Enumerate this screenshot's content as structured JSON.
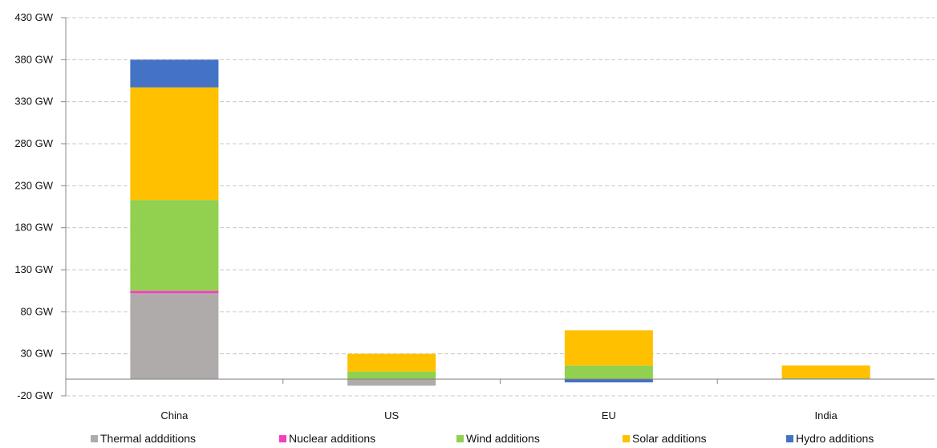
{
  "chart_data": {
    "type": "bar",
    "stacked": true,
    "categories": [
      "China",
      "US",
      "EU",
      "India"
    ],
    "y_unit_suffix": " GW",
    "ylim": [
      -20,
      430
    ],
    "y_ticks": [
      -20,
      30,
      80,
      130,
      180,
      230,
      280,
      330,
      380,
      430
    ],
    "grid": true,
    "legend_position": "bottom",
    "series": [
      {
        "name": "Thermal addditions",
        "color": "#b0abab",
        "values": [
          102,
          -8,
          0,
          0
        ]
      },
      {
        "name": "Nuclear additions",
        "color": "#f23fc0",
        "values": [
          3,
          0,
          0,
          0
        ]
      },
      {
        "name": "Wind additions",
        "color": "#92d050",
        "values": [
          108,
          9,
          16,
          1
        ]
      },
      {
        "name": "Solar additions",
        "color": "#ffc000",
        "values": [
          134,
          21,
          42,
          15
        ]
      },
      {
        "name": "Hydro additions",
        "color": "#4472c4",
        "values": [
          33,
          0,
          -4,
          0
        ]
      }
    ]
  }
}
